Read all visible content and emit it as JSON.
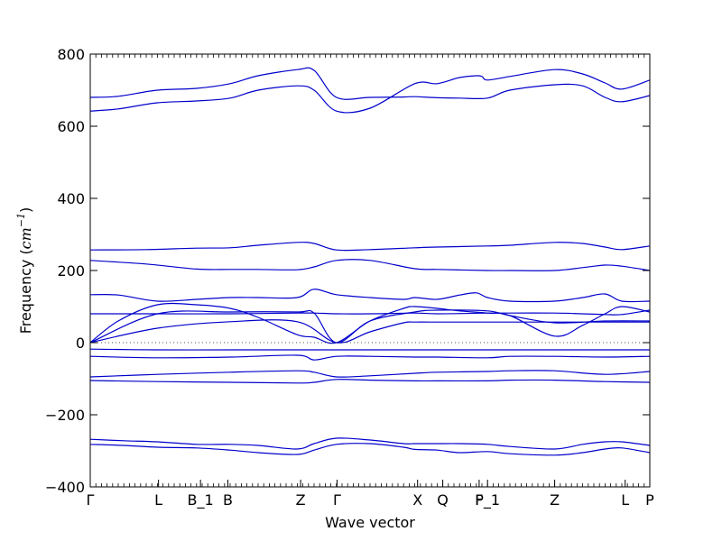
{
  "chart_data": {
    "type": "line",
    "xlabel": "Wave vector",
    "ylabel": "Frequency ($cm^{-1}$)",
    "ylabel_text": "Frequency (",
    "ylabel_math": "cm",
    "ylabel_sup": "−1",
    "ylabel_close": ")",
    "ylim": [
      -400,
      800
    ],
    "xlim": [
      0,
      100
    ],
    "y_ticks": [
      -400,
      -200,
      0,
      200,
      400,
      600,
      800
    ],
    "y_tick_labels": [
      "−400",
      "−200",
      "0",
      "200",
      "400",
      "600",
      "800"
    ],
    "x_ticks": [
      {
        "x": 0,
        "label": "Γ"
      },
      {
        "x": 12.2,
        "label": "L"
      },
      {
        "x": 19.7,
        "label": "B_1"
      },
      {
        "x": 24.6,
        "label": "B"
      },
      {
        "x": 37.6,
        "label": "Z"
      },
      {
        "x": 44.1,
        "label": "Γ"
      },
      {
        "x": 58.5,
        "label": "X"
      },
      {
        "x": 63.0,
        "label": "Q"
      },
      {
        "x": 69.5,
        "label": "F"
      },
      {
        "x": 71.0,
        "label": "P_1"
      },
      {
        "x": 83.0,
        "label": "Z"
      },
      {
        "x": 95.6,
        "label": "L"
      },
      {
        "x": 100,
        "label": "P"
      }
    ],
    "zero_line": true,
    "line_color": "#0000cc",
    "series": [
      {
        "x": [
          0,
          5,
          12,
          19,
          25,
          30,
          37,
          40,
          44,
          50,
          56,
          58,
          62,
          66,
          71,
          75,
          83,
          88,
          92,
          95,
          100
        ],
        "y": [
          680,
          683,
          700,
          705,
          718,
          740,
          757,
          755,
          680,
          680,
          681,
          682,
          679,
          678,
          678,
          700,
          715,
          712,
          680,
          668,
          685
        ]
      },
      {
        "x": [
          0,
          5,
          12,
          19,
          25,
          30,
          37,
          40,
          44,
          50,
          58,
          62,
          66,
          69,
          70,
          71,
          75,
          83,
          88,
          92,
          95,
          100
        ],
        "y": [
          642,
          648,
          665,
          670,
          678,
          700,
          712,
          700,
          642,
          650,
          718,
          718,
          735,
          740,
          738,
          728,
          738,
          757,
          745,
          720,
          703,
          728
        ]
      },
      {
        "x": [
          0,
          10,
          19,
          25,
          30,
          37,
          40,
          44,
          50,
          58,
          62,
          71,
          75,
          83,
          88,
          92,
          95,
          100
        ],
        "y": [
          257,
          258,
          262,
          263,
          270,
          278,
          275,
          257,
          258,
          263,
          265,
          268,
          270,
          278,
          275,
          265,
          258,
          268
        ]
      },
      {
        "x": [
          0,
          10,
          19,
          25,
          30,
          37,
          40,
          44,
          50,
          58,
          62,
          71,
          75,
          83,
          88,
          92,
          95,
          100
        ],
        "y": [
          228,
          218,
          204,
          203,
          203,
          202,
          210,
          228,
          228,
          205,
          203,
          200,
          200,
          200,
          208,
          215,
          212,
          200
        ]
      },
      {
        "x": [
          0,
          5,
          12,
          19,
          25,
          30,
          37,
          40,
          44,
          50,
          56,
          58,
          62,
          66,
          69,
          71,
          75,
          83,
          88,
          92,
          95,
          100
        ],
        "y": [
          133,
          132,
          115,
          120,
          125,
          125,
          125,
          148,
          133,
          125,
          120,
          125,
          120,
          132,
          138,
          125,
          115,
          115,
          125,
          135,
          115,
          115
        ]
      },
      {
        "x": [
          0,
          12,
          25,
          37,
          40,
          44,
          50,
          58,
          62,
          71,
          75,
          83,
          88,
          92,
          95,
          100
        ],
        "y": [
          80,
          80,
          80,
          82,
          82,
          80,
          80,
          82,
          80,
          82,
          82,
          82,
          80,
          78,
          78,
          90
        ]
      },
      {
        "x": [
          0,
          5,
          12,
          19,
          25,
          30,
          37,
          40,
          44,
          50,
          56,
          58,
          62,
          66,
          71,
          75,
          83,
          88,
          92,
          95,
          100
        ],
        "y": [
          0,
          60,
          105,
          105,
          95,
          70,
          22,
          15,
          0,
          60,
          95,
          100,
          95,
          88,
          82,
          75,
          18,
          48,
          80,
          100,
          85
        ]
      },
      {
        "x": [
          0,
          12,
          25,
          37,
          44,
          50,
          56,
          58,
          62,
          66,
          71,
          75,
          83,
          88,
          92,
          95,
          100
        ],
        "y": [
          0,
          40,
          58,
          58,
          0,
          30,
          55,
          57,
          57,
          57,
          57,
          57,
          57,
          57,
          57,
          57,
          57
        ]
      },
      {
        "x": [
          0,
          12,
          25,
          37,
          40,
          44,
          50,
          58,
          62,
          71,
          75,
          83,
          92,
          100
        ],
        "y": [
          0,
          80,
          85,
          85,
          82,
          0,
          60,
          85,
          90,
          88,
          75,
          55,
          60,
          60
        ]
      },
      {
        "x": [
          0,
          12,
          25,
          37,
          40,
          44,
          50,
          58,
          62,
          71,
          75,
          83,
          92,
          100
        ],
        "y": [
          -18,
          -20,
          -20,
          -20,
          -20,
          -20,
          -20,
          -20,
          -20,
          -20,
          -20,
          -20,
          -20,
          -20
        ]
      },
      {
        "x": [
          0,
          12,
          25,
          37,
          40,
          44,
          50,
          58,
          62,
          71,
          75,
          83,
          92,
          100
        ],
        "y": [
          -38,
          -42,
          -40,
          -35,
          -48,
          -38,
          -38,
          -40,
          -40,
          -42,
          -38,
          -38,
          -40,
          -38
        ]
      },
      {
        "x": [
          0,
          12,
          25,
          37,
          40,
          44,
          50,
          58,
          62,
          71,
          75,
          83,
          92,
          100
        ],
        "y": [
          -95,
          -88,
          -82,
          -78,
          -82,
          -95,
          -92,
          -85,
          -82,
          -80,
          -78,
          -78,
          -88,
          -80
        ]
      },
      {
        "x": [
          0,
          12,
          25,
          37,
          40,
          44,
          50,
          58,
          62,
          71,
          75,
          83,
          92,
          100
        ],
        "y": [
          -105,
          -108,
          -110,
          -112,
          -110,
          -102,
          -104,
          -106,
          -106,
          -106,
          -104,
          -104,
          -108,
          -110
        ]
      },
      {
        "x": [
          0,
          6,
          12,
          19,
          25,
          30,
          37,
          40,
          44,
          50,
          56,
          58,
          62,
          66,
          71,
          75,
          83,
          88,
          92,
          95,
          100
        ],
        "y": [
          -268,
          -272,
          -275,
          -282,
          -282,
          -285,
          -295,
          -280,
          -265,
          -270,
          -280,
          -280,
          -280,
          -280,
          -282,
          -288,
          -295,
          -282,
          -275,
          -275,
          -285
        ]
      },
      {
        "x": [
          0,
          6,
          12,
          19,
          25,
          30,
          37,
          40,
          44,
          50,
          56,
          58,
          62,
          66,
          71,
          75,
          83,
          88,
          92,
          95,
          100
        ],
        "y": [
          -282,
          -285,
          -290,
          -292,
          -298,
          -305,
          -310,
          -298,
          -282,
          -280,
          -290,
          -296,
          -298,
          -305,
          -302,
          -308,
          -312,
          -305,
          -295,
          -292,
          -305
        ]
      }
    ]
  }
}
